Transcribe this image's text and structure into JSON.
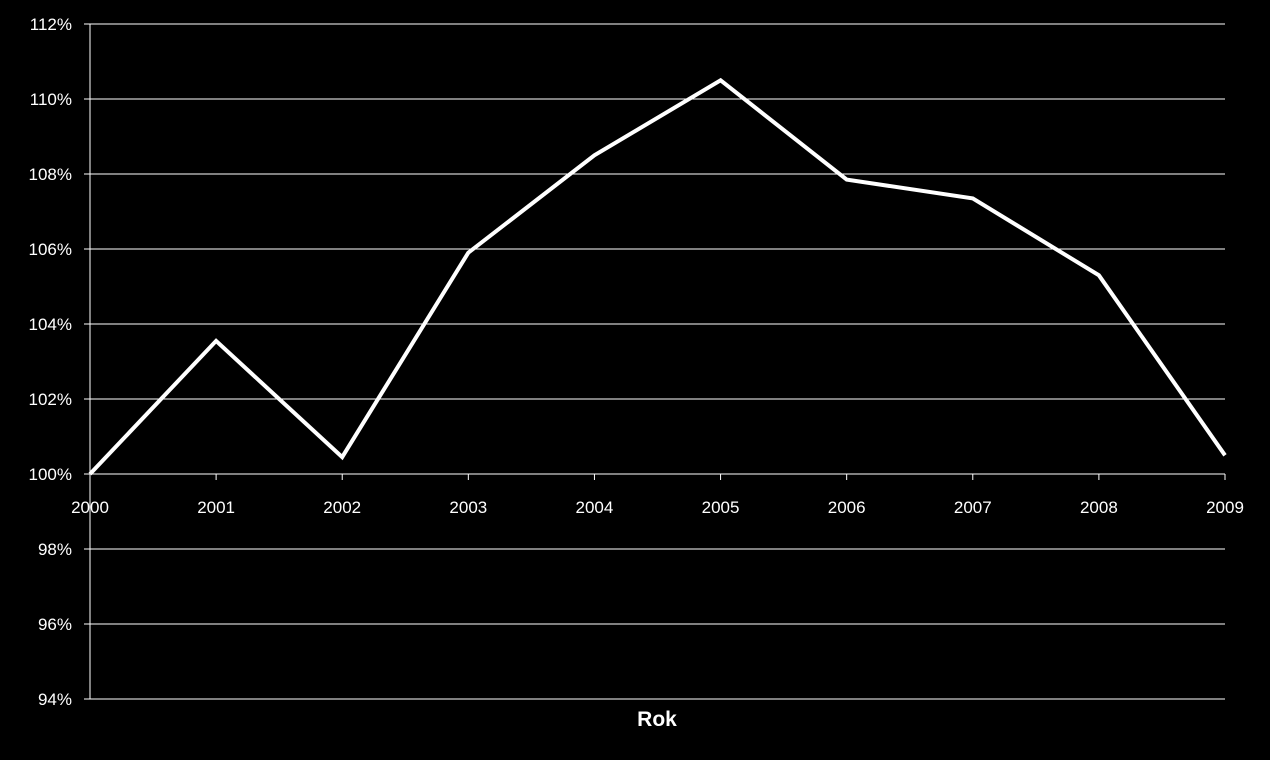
{
  "chart_data": {
    "type": "line",
    "title": "",
    "xlabel": "Rok",
    "ylabel": "",
    "categories": [
      "2000",
      "2001",
      "2002",
      "2003",
      "2004",
      "2005",
      "2006",
      "2007",
      "2008",
      "2009"
    ],
    "series": [
      {
        "values": [
          100.0,
          103.55,
          100.45,
          105.9,
          108.5,
          110.5,
          107.85,
          107.35,
          105.3,
          100.5
        ]
      }
    ],
    "ylim": [
      94,
      112
    ],
    "y_ticks": [
      94,
      96,
      98,
      100,
      102,
      104,
      106,
      108,
      110,
      112
    ],
    "y_tick_labels": [
      "94%",
      "96%",
      "98%",
      "100%",
      "102%",
      "104%",
      "106%",
      "108%",
      "110%",
      "112%"
    ],
    "x_axis_crosses_at": 100,
    "grid": true,
    "legend": "none",
    "colors": {
      "background": "#000000",
      "line": "#ffffff",
      "text": "#ffffff",
      "grid": "#ffffff"
    }
  }
}
